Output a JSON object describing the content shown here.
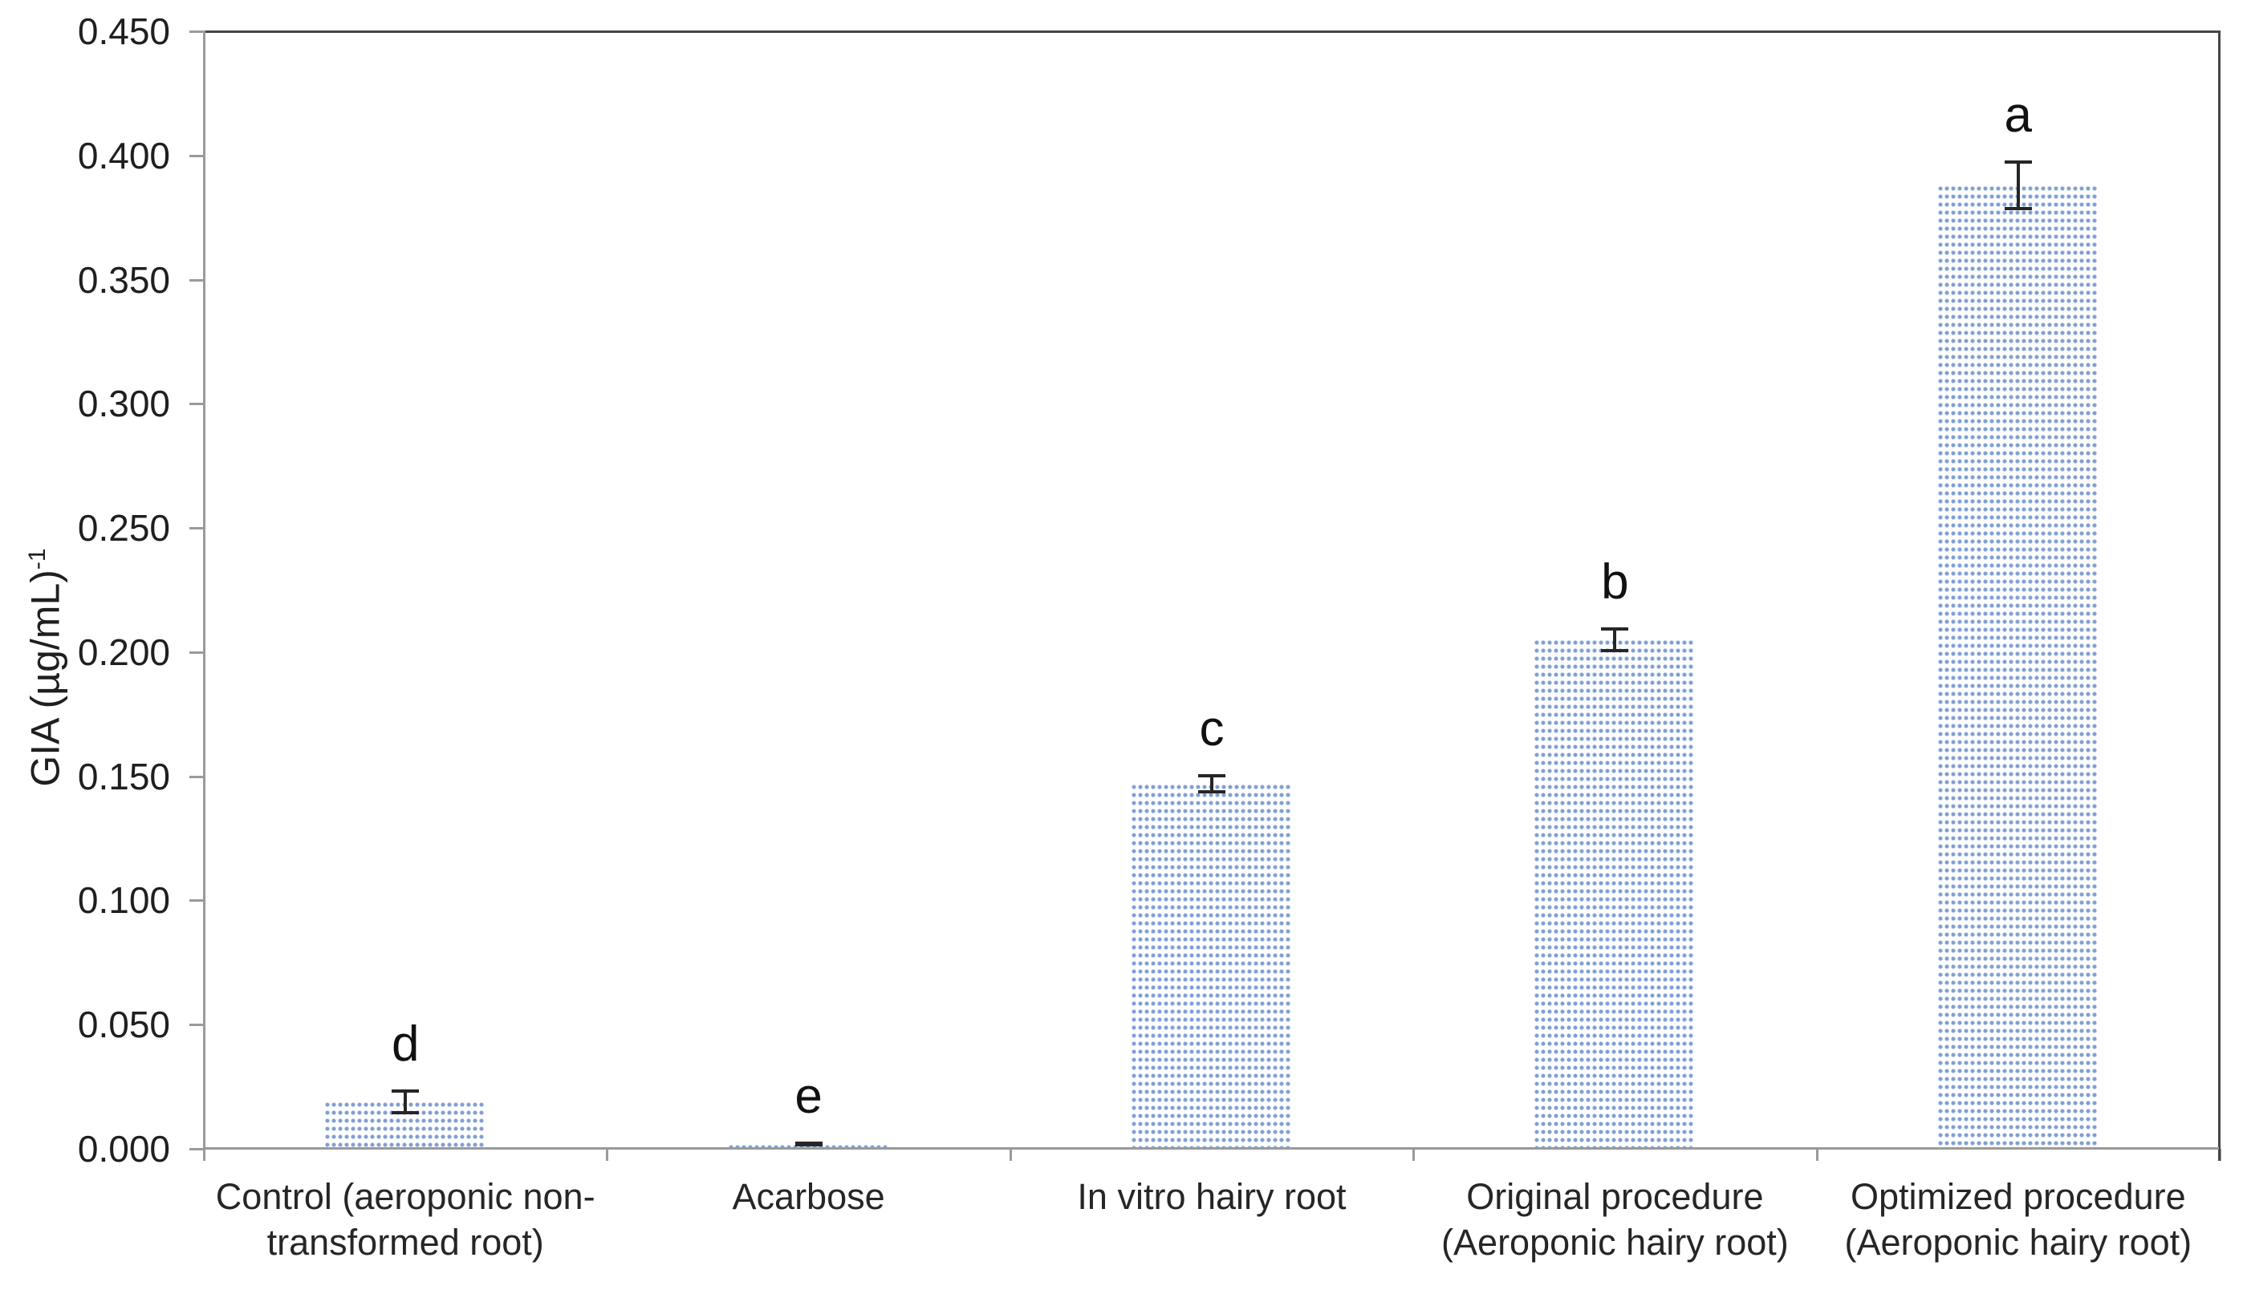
{
  "chart_data": {
    "type": "bar",
    "title": "",
    "xlabel": "",
    "ylabel": "GIA (µg/mL)⁻¹",
    "ylabel_base": "GIA (µg/mL)",
    "ylabel_superscript": "-1",
    "ylim": [
      0,
      0.45
    ],
    "ytick_step": 0.05,
    "ytick_labels": [
      "0.000",
      "0.050",
      "0.100",
      "0.150",
      "0.200",
      "0.250",
      "0.300",
      "0.350",
      "0.400",
      "0.450"
    ],
    "grid": false,
    "legend_position": "none",
    "categories": [
      "Control (aeroponic non-transformed root)",
      "Acarbose",
      "In vitro hairy root",
      "Original procedure (Aeroponic hairy root)",
      "Optimized procedure (Aeroponic hairy root)"
    ],
    "category_label_lines": [
      [
        "Control (aeroponic non-",
        "transformed root)"
      ],
      [
        "Acarbose"
      ],
      [
        "In vitro hairy root"
      ],
      [
        "Original procedure",
        "(Aeroponic hairy root)"
      ],
      [
        "Optimized procedure",
        "(Aeroponic hairy root)"
      ]
    ],
    "series": [
      {
        "name": "GIA",
        "values": [
          0.019,
          0.002,
          0.147,
          0.205,
          0.388
        ],
        "errors": [
          0.005,
          0.001,
          0.004,
          0.005,
          0.01
        ],
        "significance_letters": [
          "d",
          "e",
          "c",
          "b",
          "a"
        ]
      }
    ],
    "bar_style": {
      "fill": "dotted-pattern",
      "dot_color": "#7f9fd2",
      "background": "#ffffff"
    },
    "colors": {
      "axis": "#9a9a9a",
      "plot_border": "#454545",
      "text": "#1f1f1f",
      "error_bar": "#262626"
    }
  }
}
